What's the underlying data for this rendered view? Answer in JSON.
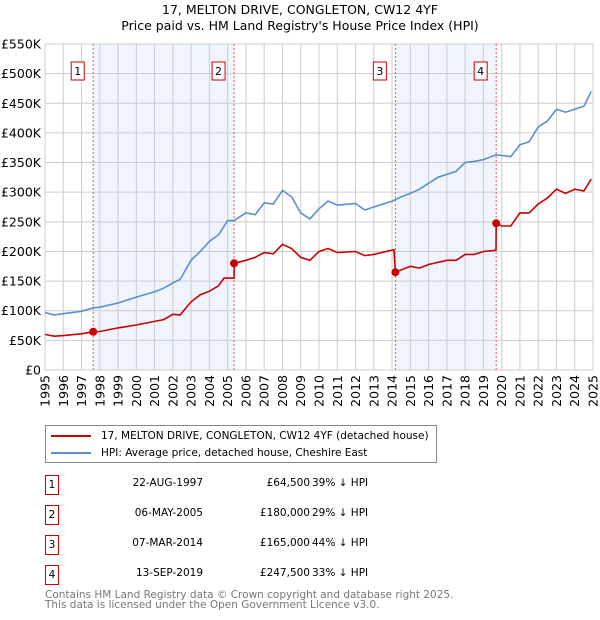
{
  "title_line1": "17, MELTON DRIVE, CONGLETON, CW12 4YF",
  "title_line2": "Price paid vs. HM Land Registry's House Price Index (HPI)",
  "chart_data": {
    "type": "line",
    "title": "17, MELTON DRIVE, CONGLETON, CW12 4YF — Price paid vs. HM Land Registry's House Price Index (HPI)",
    "xlim": [
      1995,
      2025
    ],
    "ylim": [
      0,
      550000
    ],
    "y_ticks": [
      0,
      50000,
      100000,
      150000,
      200000,
      250000,
      300000,
      350000,
      400000,
      450000,
      500000,
      550000
    ],
    "y_tick_labels": [
      "£0",
      "£50K",
      "£100K",
      "£150K",
      "£200K",
      "£250K",
      "£300K",
      "£350K",
      "£400K",
      "£450K",
      "£500K",
      "£550K"
    ],
    "x_ticks": [
      "1995",
      "1996",
      "1997",
      "1998",
      "1999",
      "2000",
      "2001",
      "2002",
      "2003",
      "2004",
      "2005",
      "2006",
      "2007",
      "2008",
      "2009",
      "2010",
      "2011",
      "2012",
      "2013",
      "2014",
      "2015",
      "2016",
      "2017",
      "2018",
      "2019",
      "2020",
      "2021",
      "2022",
      "2023",
      "2024",
      "2025"
    ],
    "grid": true,
    "legend_position": "below",
    "series": [
      {
        "name": "17, MELTON DRIVE, CONGLETON, CW12 4YF (detached house)",
        "color": "#cc0000",
        "x": [
          1995,
          1995.5,
          1996,
          1997,
          1997.64,
          1998,
          1999,
          2000,
          2001,
          2001.5,
          2002,
          2002.4,
          2003,
          2003.5,
          2004,
          2004.5,
          2004.8,
          2005.35,
          2005.36,
          2006,
          2006.5,
          2007,
          2007.5,
          2008,
          2008.5,
          2009,
          2009.5,
          2010,
          2010.5,
          2011,
          2012,
          2012.5,
          2013,
          2014.1,
          2014.18,
          2015,
          2015.5,
          2016,
          2017,
          2017.5,
          2018,
          2018.5,
          2019,
          2019.69,
          2019.7,
          2020,
          2020.5,
          2021,
          2021.5,
          2022,
          2022.5,
          2023,
          2023.5,
          2024,
          2024.5,
          2024.9
        ],
        "y": [
          60000,
          57000,
          58000,
          61000,
          64500,
          65000,
          71000,
          76000,
          82000,
          85000,
          94000,
          93000,
          115000,
          127000,
          133000,
          142000,
          155000,
          155000,
          180000,
          185000,
          190000,
          198000,
          196000,
          212000,
          205000,
          190000,
          185000,
          200000,
          205000,
          198000,
          200000,
          193000,
          195000,
          203000,
          165000,
          175000,
          172000,
          178000,
          185000,
          185000,
          195000,
          195000,
          200000,
          202000,
          247500,
          243000,
          243000,
          265000,
          265000,
          280000,
          290000,
          305000,
          298000,
          305000,
          302000,
          322000
        ]
      },
      {
        "name": "HPI: Average price, detached house, Cheshire East",
        "color": "#5b8fd0",
        "x": [
          1995,
          1995.5,
          1996,
          1997,
          1997.64,
          1998,
          1999,
          2000,
          2001,
          2001.5,
          2002,
          2002.4,
          2003,
          2003.5,
          2004,
          2004.5,
          2005,
          2005.35,
          2006,
          2006.5,
          2007,
          2007.5,
          2008,
          2008.5,
          2009,
          2009.5,
          2010,
          2010.5,
          2011,
          2012,
          2012.5,
          2013,
          2014,
          2014.5,
          2015,
          2015.5,
          2016,
          2016.5,
          2017,
          2017.5,
          2018,
          2018.5,
          2019,
          2019.7,
          2020,
          2020.5,
          2021,
          2021.5,
          2022,
          2022.5,
          2023,
          2023.5,
          2024,
          2024.5,
          2024.9
        ],
        "y": [
          97000,
          93000,
          95000,
          99000,
          105000,
          106000,
          113000,
          123000,
          132000,
          138000,
          147000,
          153000,
          185000,
          200000,
          217000,
          228000,
          252000,
          252000,
          265000,
          262000,
          282000,
          280000,
          303000,
          292000,
          265000,
          255000,
          272000,
          285000,
          278000,
          281000,
          270000,
          275000,
          285000,
          292000,
          298000,
          305000,
          315000,
          325000,
          330000,
          335000,
          350000,
          352000,
          355000,
          363000,
          362000,
          360000,
          380000,
          385000,
          410000,
          420000,
          440000,
          435000,
          440000,
          445000,
          470000
        ]
      }
    ],
    "sales": [
      {
        "num": "1",
        "x": 1997.64,
        "price": 64500
      },
      {
        "num": "2",
        "x": 2005.35,
        "price": 180000
      },
      {
        "num": "3",
        "x": 2014.18,
        "price": 165000
      },
      {
        "num": "4",
        "x": 2019.7,
        "price": 247500
      }
    ]
  },
  "legend": [
    {
      "label": "17, MELTON DRIVE, CONGLETON, CW12 4YF (detached house)",
      "color": "#cc0000"
    },
    {
      "label": "HPI: Average price, detached house, Cheshire East",
      "color": "#5b8fd0"
    }
  ],
  "table": [
    {
      "num": "1",
      "date": "22-AUG-1997",
      "price": "£64,500",
      "hpi": "39% ↓ HPI"
    },
    {
      "num": "2",
      "date": "06-MAY-2005",
      "price": "£180,000",
      "hpi": "29% ↓ HPI"
    },
    {
      "num": "3",
      "date": "07-MAR-2014",
      "price": "£165,000",
      "hpi": "44% ↓ HPI"
    },
    {
      "num": "4",
      "date": "13-SEP-2019",
      "price": "£247,500",
      "hpi": "33% ↓ HPI"
    }
  ],
  "footer_line1": "Contains HM Land Registry data © Crown copyright and database right 2025.",
  "footer_line2": "This data is licensed under the Open Government Licence v3.0."
}
